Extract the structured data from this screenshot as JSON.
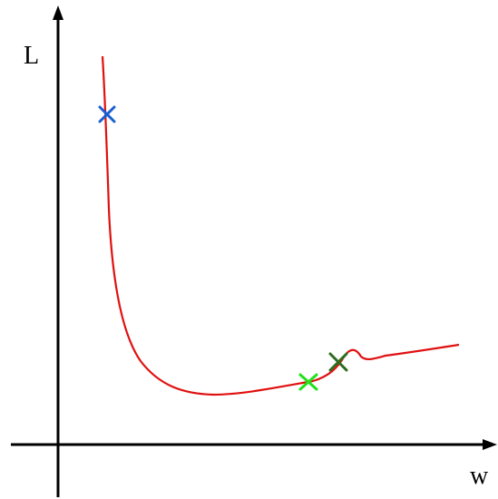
{
  "axes": {
    "y_label": "L",
    "x_label": "w"
  },
  "colors": {
    "axis": "#000000",
    "curve": "#e01010",
    "marker_start": "#1a5fd0",
    "marker_mid": "#22e01a",
    "marker_end": "#2e6b1e"
  },
  "markers": [
    {
      "name": "blue-cross-marker",
      "color_key": "marker_start"
    },
    {
      "name": "light-green-cross-marker",
      "color_key": "marker_mid"
    },
    {
      "name": "dark-green-cross-marker",
      "color_key": "marker_end"
    }
  ]
}
